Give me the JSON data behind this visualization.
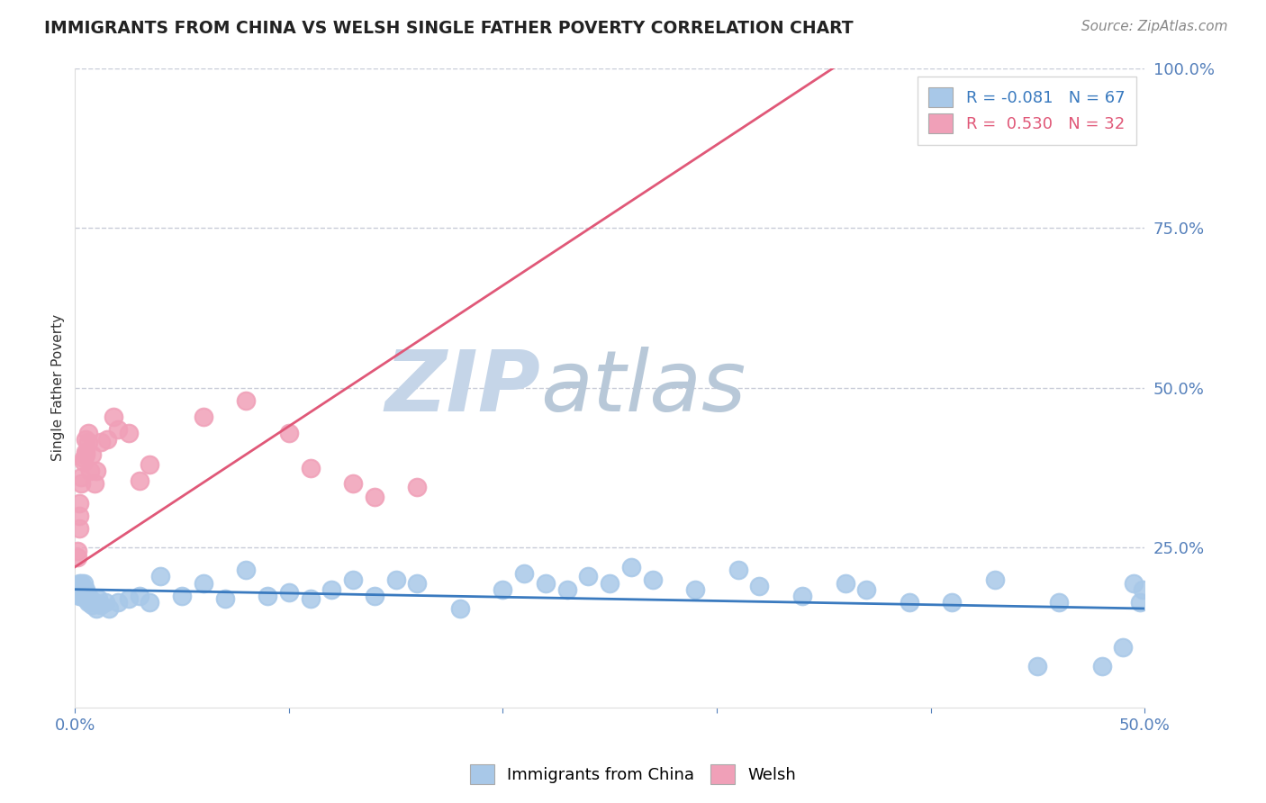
{
  "title": "IMMIGRANTS FROM CHINA VS WELSH SINGLE FATHER POVERTY CORRELATION CHART",
  "source": "Source: ZipAtlas.com",
  "ylabel": "Single Father Poverty",
  "xlim": [
    0.0,
    0.5
  ],
  "ylim": [
    0.0,
    1.0
  ],
  "legend1_label": "Immigrants from China",
  "legend2_label": "Welsh",
  "r1": -0.081,
  "n1": 67,
  "r2": 0.53,
  "n2": 32,
  "color_blue": "#a8c8e8",
  "color_pink": "#f0a0b8",
  "trendline_blue": "#3a7abf",
  "trendline_pink": "#e05878",
  "watermark_zip_color": "#c5d5e8",
  "watermark_atlas_color": "#b8c8d8",
  "grid_color": "#c8ccd8",
  "background_color": "#ffffff",
  "title_color": "#222222",
  "source_color": "#888888",
  "tick_color": "#5580bb",
  "ylabel_color": "#333333",
  "blue_slope": -0.06,
  "blue_intercept": 0.185,
  "pink_slope": 2.2,
  "pink_intercept": 0.22,
  "blue_x": [
    0.001,
    0.001,
    0.002,
    0.002,
    0.002,
    0.003,
    0.003,
    0.003,
    0.003,
    0.004,
    0.004,
    0.004,
    0.005,
    0.005,
    0.005,
    0.006,
    0.006,
    0.007,
    0.008,
    0.009,
    0.01,
    0.011,
    0.012,
    0.014,
    0.016,
    0.02,
    0.025,
    0.03,
    0.035,
    0.04,
    0.05,
    0.06,
    0.07,
    0.08,
    0.09,
    0.1,
    0.11,
    0.12,
    0.13,
    0.14,
    0.15,
    0.16,
    0.18,
    0.2,
    0.21,
    0.22,
    0.23,
    0.24,
    0.25,
    0.26,
    0.27,
    0.29,
    0.31,
    0.32,
    0.34,
    0.36,
    0.37,
    0.39,
    0.41,
    0.43,
    0.45,
    0.46,
    0.48,
    0.49,
    0.495,
    0.498,
    0.499
  ],
  "blue_y": [
    0.185,
    0.19,
    0.175,
    0.185,
    0.195,
    0.175,
    0.185,
    0.19,
    0.195,
    0.18,
    0.185,
    0.195,
    0.17,
    0.175,
    0.185,
    0.165,
    0.175,
    0.17,
    0.16,
    0.165,
    0.155,
    0.17,
    0.16,
    0.165,
    0.155,
    0.165,
    0.17,
    0.175,
    0.165,
    0.205,
    0.175,
    0.195,
    0.17,
    0.215,
    0.175,
    0.18,
    0.17,
    0.185,
    0.2,
    0.175,
    0.2,
    0.195,
    0.155,
    0.185,
    0.21,
    0.195,
    0.185,
    0.205,
    0.195,
    0.22,
    0.2,
    0.185,
    0.215,
    0.19,
    0.175,
    0.195,
    0.185,
    0.165,
    0.165,
    0.2,
    0.065,
    0.165,
    0.065,
    0.095,
    0.195,
    0.165,
    0.185
  ],
  "pink_x": [
    0.001,
    0.001,
    0.002,
    0.002,
    0.002,
    0.003,
    0.003,
    0.004,
    0.004,
    0.005,
    0.005,
    0.005,
    0.006,
    0.006,
    0.007,
    0.008,
    0.009,
    0.01,
    0.012,
    0.015,
    0.018,
    0.02,
    0.025,
    0.03,
    0.035,
    0.06,
    0.08,
    0.1,
    0.11,
    0.13,
    0.14,
    0.16
  ],
  "pink_y": [
    0.235,
    0.245,
    0.28,
    0.3,
    0.32,
    0.35,
    0.36,
    0.385,
    0.39,
    0.395,
    0.4,
    0.42,
    0.415,
    0.43,
    0.37,
    0.395,
    0.35,
    0.37,
    0.415,
    0.42,
    0.455,
    0.435,
    0.43,
    0.355,
    0.38,
    0.455,
    0.48,
    0.43,
    0.375,
    0.35,
    0.33,
    0.345
  ]
}
